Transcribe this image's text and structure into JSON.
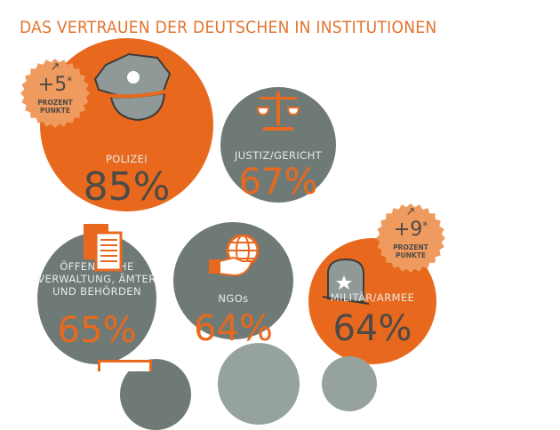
{
  "title": "DAS VERTRAUEN DER DEUTSCHEN IN INSTITUTIONEN",
  "colors": {
    "orange": "#e8691d",
    "gray": "#6f7a77",
    "badge": "#ef9a5e"
  },
  "institutions": [
    {
      "label": "POLIZEI",
      "value": "85%",
      "icon": "police-cap-icon"
    },
    {
      "label": "JUSTIZ/GERICHT",
      "value": "67%",
      "icon": "scales-icon"
    },
    {
      "label_lines": [
        "ÖFFENTLICHE",
        "VERWALTUNG, ÄMTER",
        "UND BEHÖRDEN"
      ],
      "value": "65%",
      "icon": "documents-icon"
    },
    {
      "label": "NGOs",
      "value": "64%",
      "icon": "hand-globe-icon"
    },
    {
      "label": "MILITÄR/ARMEE",
      "value": "64%",
      "icon": "helmet-icon"
    }
  ],
  "badges": [
    {
      "arrow": "↗",
      "value": "+5",
      "star": "*",
      "unit_lines": [
        "PROZENT",
        "PUNKTE"
      ]
    },
    {
      "arrow": "↗",
      "value": "+9",
      "star": "*",
      "unit_lines": [
        "PROZENT",
        "PUNKTE"
      ]
    }
  ]
}
